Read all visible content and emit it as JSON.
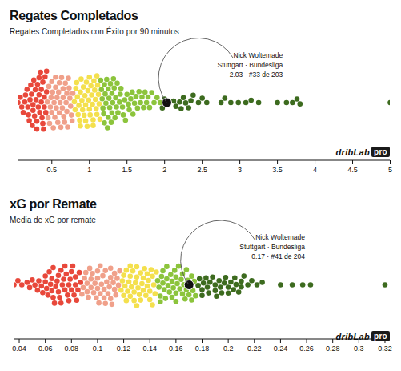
{
  "chart_data": [
    {
      "type": "beeswarm",
      "title": "Regates Completados",
      "subtitle": "Regates Completados con Éxito por 90 minutos",
      "xlim": [
        0.05,
        5
      ],
      "xticks": [
        0.5,
        1,
        1.5,
        2,
        2.5,
        3,
        3.5,
        4,
        4.5,
        5
      ],
      "series": [
        {
          "color": "#e8483b",
          "values": [
            0.05,
            0.08,
            0.1,
            0.12,
            0.14,
            0.15,
            0.17,
            0.18,
            0.19,
            0.2,
            0.21,
            0.22,
            0.23,
            0.24,
            0.25,
            0.25,
            0.26,
            0.27,
            0.28,
            0.29,
            0.3,
            0.3,
            0.31,
            0.32,
            0.33,
            0.33,
            0.34,
            0.35,
            0.36,
            0.36,
            0.37,
            0.38,
            0.38,
            0.39,
            0.4,
            0.4,
            0.41,
            0.42,
            0.43,
            0.43
          ]
        },
        {
          "color": "#f0a08a",
          "values": [
            0.44,
            0.45,
            0.46,
            0.47,
            0.48,
            0.49,
            0.5,
            0.5,
            0.51,
            0.52,
            0.53,
            0.54,
            0.55,
            0.55,
            0.56,
            0.57,
            0.58,
            0.59,
            0.6,
            0.6,
            0.61,
            0.62,
            0.63,
            0.64,
            0.65,
            0.65,
            0.66,
            0.67,
            0.68,
            0.69,
            0.7,
            0.7,
            0.71,
            0.72,
            0.73,
            0.74,
            0.75,
            0.76,
            0.77,
            0.78
          ]
        },
        {
          "color": "#f4e04d",
          "values": [
            0.8,
            0.81,
            0.82,
            0.83,
            0.84,
            0.85,
            0.86,
            0.87,
            0.88,
            0.88,
            0.89,
            0.9,
            0.91,
            0.92,
            0.93,
            0.94,
            0.95,
            0.95,
            0.96,
            0.97,
            0.98,
            0.99,
            1.0,
            1.0,
            1.01,
            1.02,
            1.03,
            1.04,
            1.05,
            1.05,
            1.06,
            1.07,
            1.08,
            1.09,
            1.1,
            1.1,
            1.11,
            1.12,
            1.13,
            1.14
          ]
        },
        {
          "color": "#8cc43c",
          "values": [
            1.15,
            1.16,
            1.17,
            1.18,
            1.19,
            1.2,
            1.2,
            1.21,
            1.22,
            1.23,
            1.24,
            1.25,
            1.25,
            1.26,
            1.27,
            1.28,
            1.29,
            1.3,
            1.3,
            1.31,
            1.32,
            1.33,
            1.34,
            1.35,
            1.36,
            1.37,
            1.38,
            1.4,
            1.41,
            1.42,
            1.44,
            1.45,
            1.47,
            1.48,
            1.5,
            1.52,
            1.53,
            1.55,
            1.57,
            1.58,
            1.6,
            1.62,
            1.64,
            1.66,
            1.68,
            1.7,
            1.72,
            1.74,
            1.76,
            1.78,
            1.8,
            1.83,
            1.86,
            1.9,
            1.94
          ]
        },
        {
          "color": "#3d6b1f",
          "values": [
            1.97,
            2.0,
            2.05,
            2.12,
            2.15,
            2.2,
            2.22,
            2.25,
            2.28,
            2.32,
            2.35,
            2.38,
            2.45,
            2.5,
            2.56,
            2.75,
            2.8,
            2.88,
            2.98,
            3.08,
            3.15,
            3.25,
            3.5,
            3.62,
            3.7,
            3.76,
            3.8,
            5.0
          ]
        }
      ],
      "annotation": {
        "value": 2.03,
        "lines": [
          "Nick Woltemade",
          "Stuttgart · Bundesliga",
          "2.03 · #33 de 203"
        ]
      },
      "logo": "dribLab",
      "logo_badge": "pro"
    },
    {
      "type": "beeswarm",
      "title": "xG por Remate",
      "subtitle": "Media de xG por remate",
      "xlim": [
        0.036,
        0.324
      ],
      "xticks": [
        0.04,
        0.06,
        0.08,
        0.1,
        0.12,
        0.14,
        0.16,
        0.18,
        0.2,
        0.22,
        0.24,
        0.26,
        0.28,
        0.3,
        0.32
      ],
      "series": [
        {
          "color": "#e8483b",
          "values": [
            0.036,
            0.039,
            0.042,
            0.046,
            0.048,
            0.05,
            0.052,
            0.054,
            0.055,
            0.057,
            0.058,
            0.06,
            0.06,
            0.061,
            0.062,
            0.063,
            0.064,
            0.065,
            0.065,
            0.066,
            0.066,
            0.067,
            0.068,
            0.069,
            0.07,
            0.07,
            0.071,
            0.072,
            0.072,
            0.073,
            0.074,
            0.075,
            0.075,
            0.076,
            0.077,
            0.078,
            0.078,
            0.079,
            0.08,
            0.08,
            0.081,
            0.082,
            0.083,
            0.083,
            0.084,
            0.085,
            0.086,
            0.087
          ]
        },
        {
          "color": "#f0a08a",
          "values": [
            0.088,
            0.089,
            0.09,
            0.091,
            0.092,
            0.092,
            0.093,
            0.094,
            0.095,
            0.095,
            0.096,
            0.097,
            0.098,
            0.099,
            0.1,
            0.1,
            0.1,
            0.101,
            0.102,
            0.102,
            0.103,
            0.104,
            0.105,
            0.105,
            0.106,
            0.106,
            0.107,
            0.108,
            0.109,
            0.11,
            0.11,
            0.11,
            0.111,
            0.112,
            0.113,
            0.113,
            0.114,
            0.115,
            0.116,
            0.117
          ]
        },
        {
          "color": "#f4e04d",
          "values": [
            0.118,
            0.119,
            0.12,
            0.12,
            0.121,
            0.122,
            0.122,
            0.123,
            0.124,
            0.125,
            0.125,
            0.125,
            0.126,
            0.127,
            0.128,
            0.128,
            0.129,
            0.13,
            0.13,
            0.13,
            0.131,
            0.132,
            0.133,
            0.133,
            0.134,
            0.135,
            0.135,
            0.136,
            0.137,
            0.138,
            0.138,
            0.139,
            0.14,
            0.14,
            0.141,
            0.142,
            0.142,
            0.143,
            0.144,
            0.145
          ]
        },
        {
          "color": "#8cc43c",
          "values": [
            0.146,
            0.147,
            0.148,
            0.148,
            0.149,
            0.15,
            0.15,
            0.151,
            0.152,
            0.153,
            0.153,
            0.154,
            0.155,
            0.156,
            0.157,
            0.157,
            0.158,
            0.159,
            0.16,
            0.16,
            0.16,
            0.161,
            0.162,
            0.163,
            0.164,
            0.165,
            0.165,
            0.166,
            0.167,
            0.168,
            0.168,
            0.169,
            0.17,
            0.171,
            0.172,
            0.172,
            0.173,
            0.174,
            0.175
          ]
        },
        {
          "color": "#3d6b1f",
          "values": [
            0.177,
            0.178,
            0.18,
            0.18,
            0.181,
            0.183,
            0.184,
            0.185,
            0.186,
            0.188,
            0.19,
            0.19,
            0.191,
            0.193,
            0.194,
            0.195,
            0.197,
            0.198,
            0.2,
            0.2,
            0.202,
            0.204,
            0.205,
            0.206,
            0.208,
            0.21,
            0.21,
            0.212,
            0.215,
            0.218,
            0.222,
            0.226,
            0.24,
            0.249,
            0.257,
            0.263,
            0.32
          ]
        }
      ],
      "annotation": {
        "value": 0.17,
        "lines": [
          "Nick Woltemade",
          "Stuttgart · Bundesliga",
          "0.17 · #41 de 204"
        ]
      },
      "logo": "dribLab",
      "logo_badge": "pro"
    }
  ]
}
